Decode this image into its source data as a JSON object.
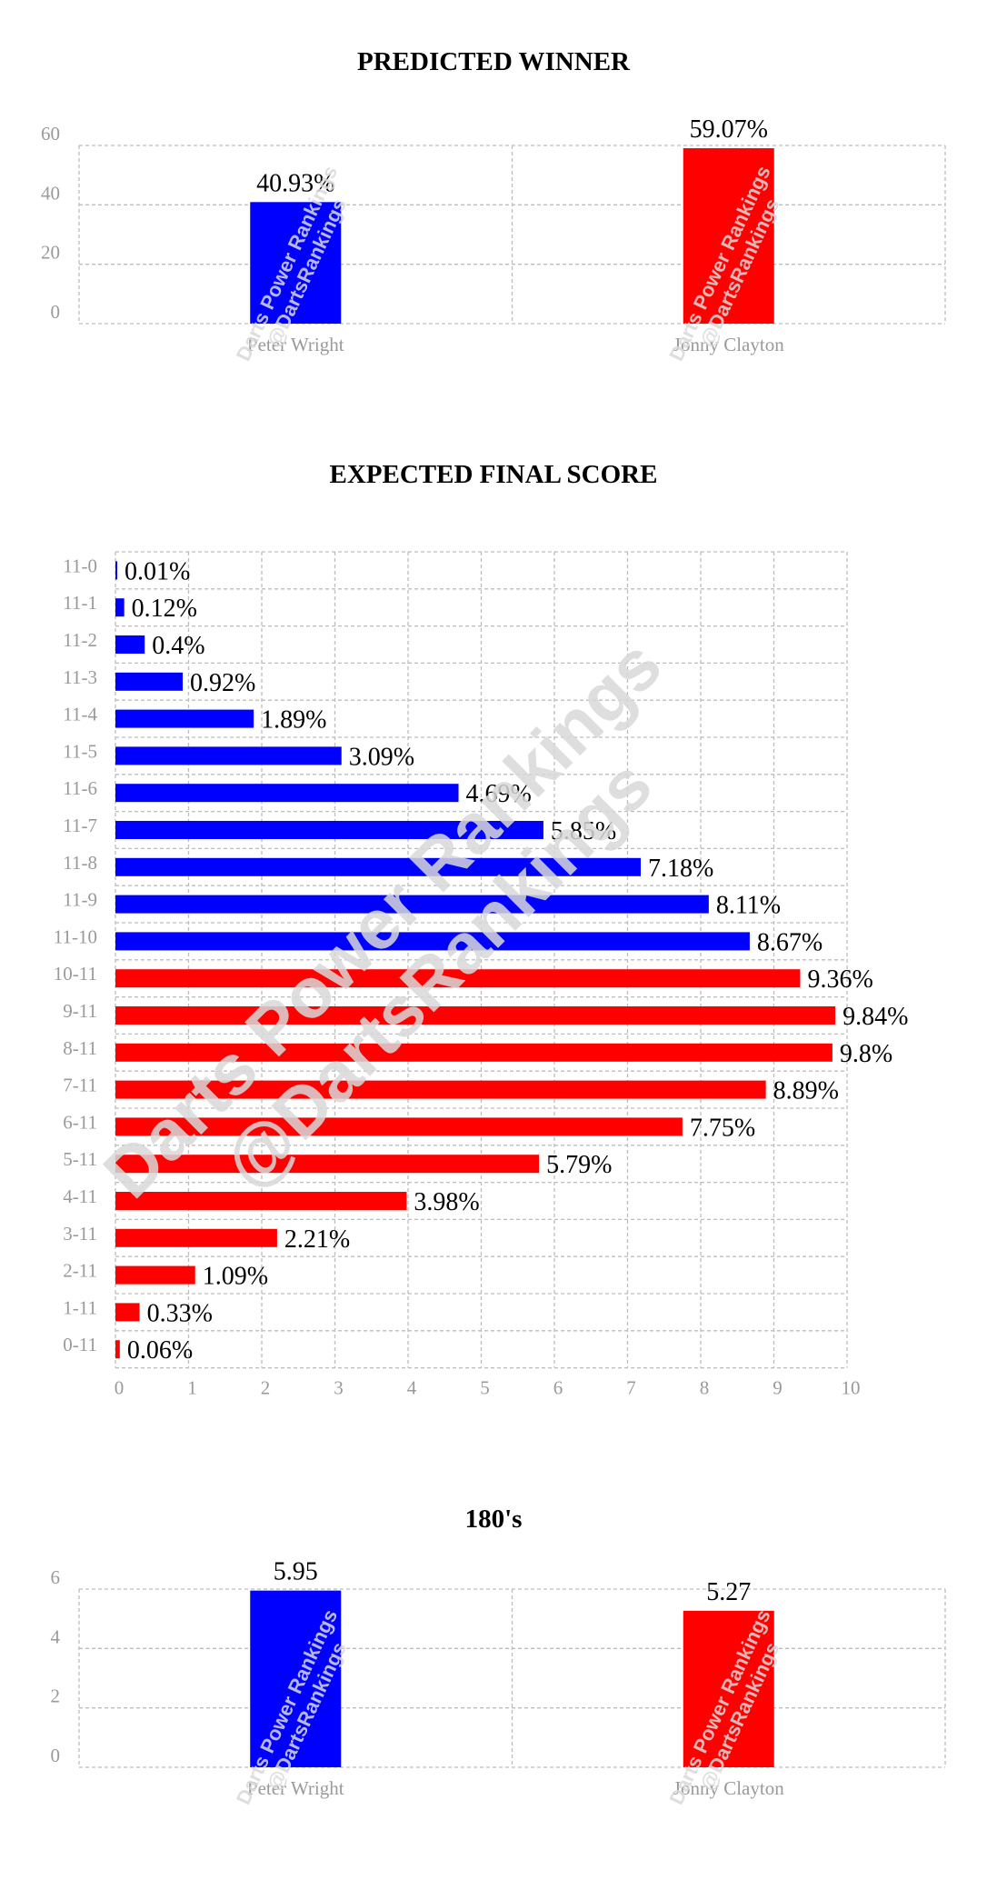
{
  "colors": {
    "wright": "#0000ff",
    "clayton": "#ff0000",
    "grid": "#bdbdbd",
    "tick": "#9a9a9a"
  },
  "watermark": {
    "line1": "Darts Power Rankings",
    "line2": "@DartsRankings"
  },
  "chart_data": [
    {
      "type": "bar",
      "title": "PREDICTED WINNER",
      "categories": [
        "Peter Wright",
        "Jonny Clayton"
      ],
      "values": [
        40.93,
        59.07
      ],
      "data_labels": [
        "40.93%",
        "59.07%"
      ],
      "colors": [
        "#0000ff",
        "#ff0000"
      ],
      "ylim": [
        0,
        60
      ],
      "yticks": [
        0,
        20,
        40,
        60
      ],
      "grid": true,
      "xlabel": "",
      "ylabel": ""
    },
    {
      "type": "bar",
      "orientation": "horizontal",
      "title": "EXPECTED FINAL SCORE",
      "categories": [
        "11-0",
        "11-1",
        "11-2",
        "11-3",
        "11-4",
        "11-5",
        "11-6",
        "11-7",
        "11-8",
        "11-9",
        "11-10",
        "10-11",
        "9-11",
        "8-11",
        "7-11",
        "6-11",
        "5-11",
        "4-11",
        "3-11",
        "2-11",
        "1-11",
        "0-11"
      ],
      "values": [
        0.01,
        0.12,
        0.4,
        0.92,
        1.89,
        3.09,
        4.69,
        5.85,
        7.18,
        8.11,
        8.67,
        9.36,
        9.84,
        9.8,
        8.89,
        7.75,
        5.79,
        3.98,
        2.21,
        1.09,
        0.33,
        0.06
      ],
      "data_labels": [
        "0.01%",
        "0.12%",
        "0.4%",
        "0.92%",
        "1.89%",
        "3.09%",
        "4.69%",
        "5.85%",
        "7.18%",
        "8.11%",
        "8.67%",
        "9.36%",
        "9.84%",
        "9.8%",
        "8.89%",
        "7.75%",
        "5.79%",
        "3.98%",
        "2.21%",
        "1.09%",
        "0.33%",
        "0.06%"
      ],
      "colors": [
        "#0000ff",
        "#0000ff",
        "#0000ff",
        "#0000ff",
        "#0000ff",
        "#0000ff",
        "#0000ff",
        "#0000ff",
        "#0000ff",
        "#0000ff",
        "#0000ff",
        "#ff0000",
        "#ff0000",
        "#ff0000",
        "#ff0000",
        "#ff0000",
        "#ff0000",
        "#ff0000",
        "#ff0000",
        "#ff0000",
        "#ff0000",
        "#ff0000"
      ],
      "xlim": [
        0,
        10
      ],
      "xticks": [
        0,
        1,
        2,
        3,
        4,
        5,
        6,
        7,
        8,
        9,
        10
      ],
      "grid": true,
      "xlabel": "",
      "ylabel": ""
    },
    {
      "type": "bar",
      "title": "180's",
      "categories": [
        "Peter Wright",
        "Jonny Clayton"
      ],
      "values": [
        5.95,
        5.27
      ],
      "data_labels": [
        "5.95",
        "5.27"
      ],
      "colors": [
        "#0000ff",
        "#ff0000"
      ],
      "ylim": [
        0,
        6
      ],
      "yticks": [
        0,
        2,
        4,
        6
      ],
      "grid": true,
      "xlabel": "",
      "ylabel": ""
    }
  ]
}
